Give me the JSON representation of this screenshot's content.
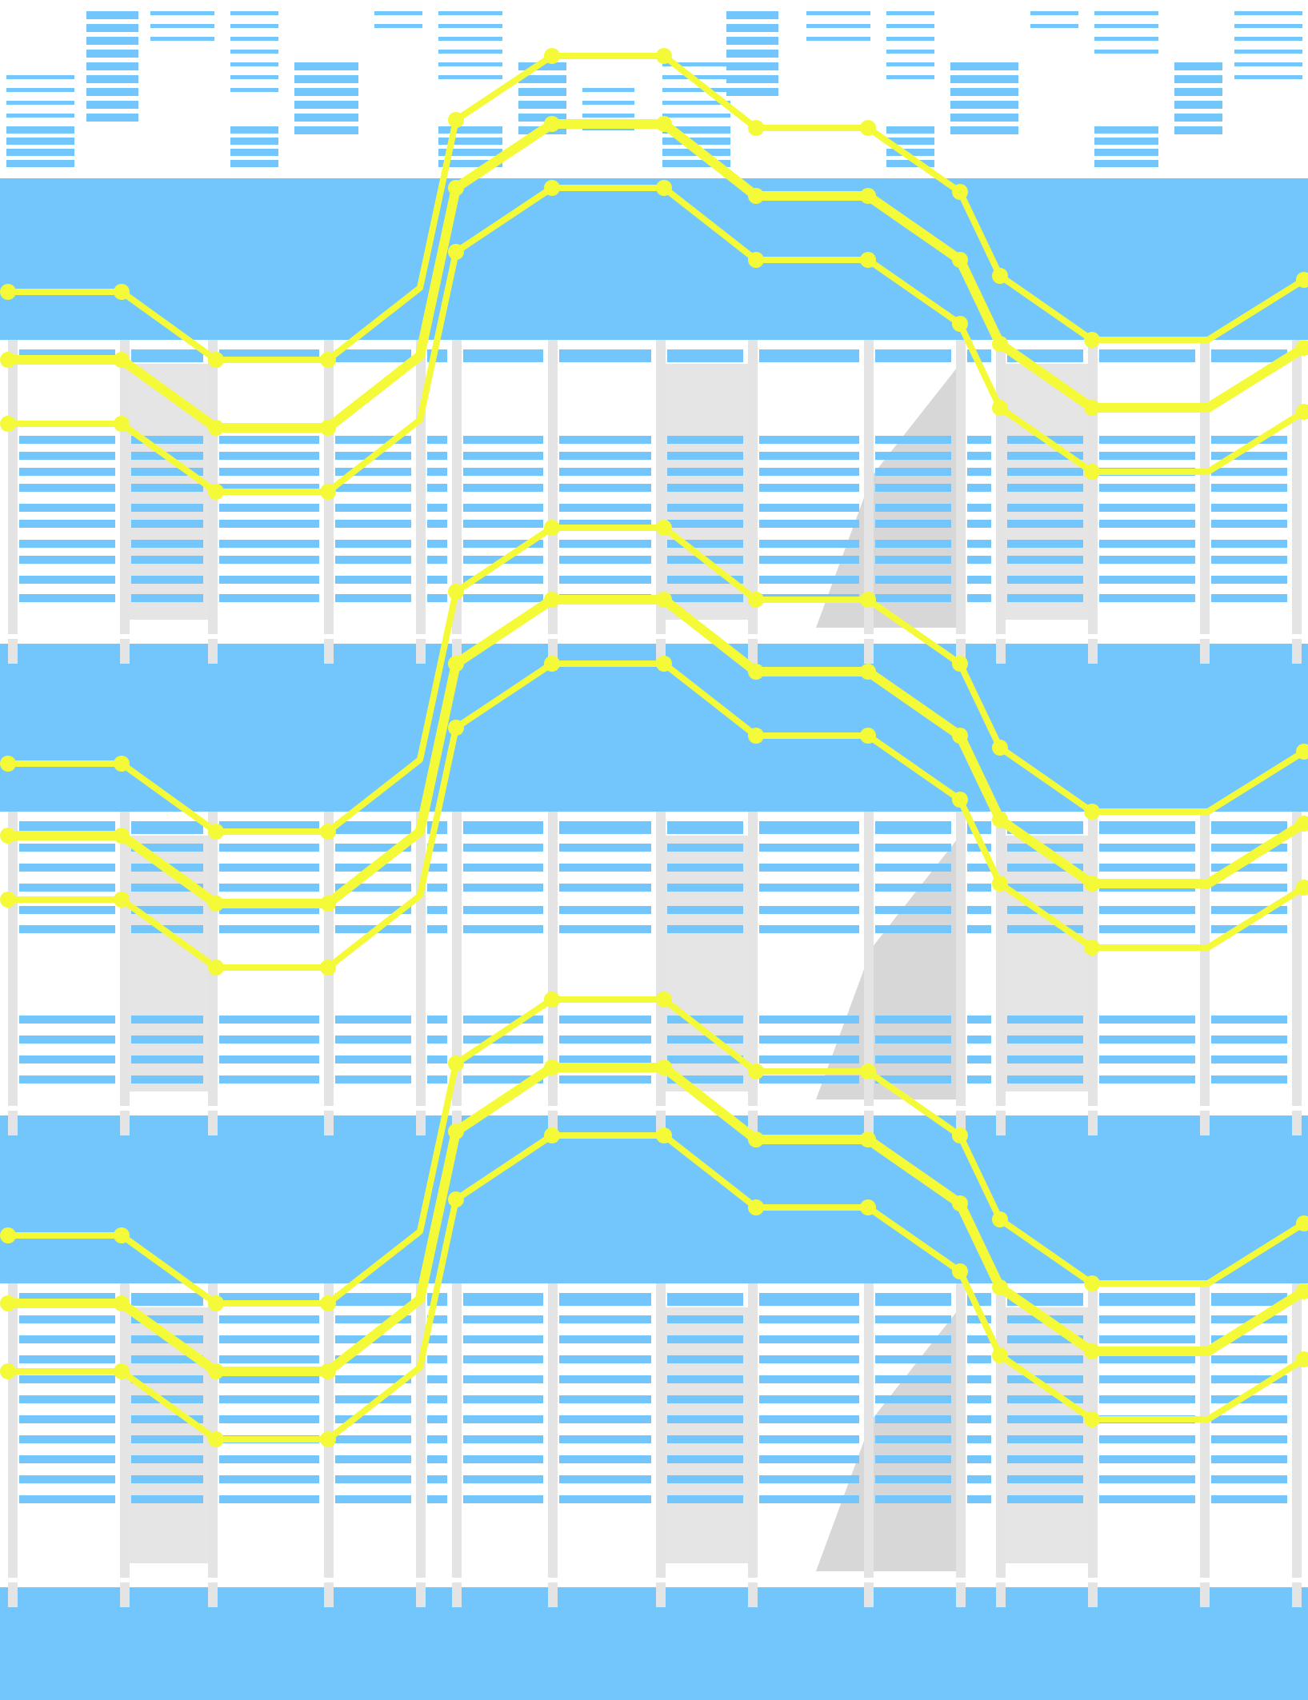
{
  "colors": {
    "sky": "#73c6fb",
    "facade": "#ffffff",
    "frame": "#e4e4e4",
    "shade": "#c9c9c9",
    "shade_light": "#dedede",
    "path": "#f5fa38"
  },
  "bands": [
    {
      "name": "band-top",
      "rows": [
        14,
        30,
        46,
        62,
        78,
        94,
        110,
        126,
        142,
        158
      ]
    },
    {
      "name": "band-1",
      "rows": [
        1
      ]
    },
    {
      "name": "band-2",
      "rows": [
        1
      ]
    },
    {
      "name": "band-3",
      "rows": [
        1
      ]
    }
  ],
  "floors": [
    {
      "name": "floor-1",
      "louver_rows": [
        8,
        10,
        12,
        14,
        16,
        18,
        20,
        22
      ]
    },
    {
      "name": "floor-2",
      "louver_rows": [
        1,
        3,
        5,
        7,
        9,
        14,
        16,
        18
      ]
    },
    {
      "name": "floor-3",
      "louver_rows": [
        1,
        3,
        5,
        7,
        9,
        11,
        13,
        15
      ]
    }
  ],
  "paths": [
    {
      "floor": 1,
      "levels": [
        2,
        3,
        3,
        2,
        0,
        0,
        1,
        1,
        2,
        3,
        4,
        4,
        3
      ]
    },
    {
      "floor": 1,
      "levels": [
        2,
        3,
        3,
        2,
        0,
        0,
        1,
        1,
        2,
        3,
        4,
        4,
        3
      ]
    },
    {
      "floor": 1,
      "levels": [
        2,
        3,
        3,
        2,
        0,
        0,
        1,
        1,
        2,
        3,
        4,
        4,
        3
      ]
    },
    {
      "floor": 2,
      "levels": [
        2,
        3,
        3,
        2,
        0,
        0,
        1,
        1,
        2,
        3,
        4,
        4,
        3
      ]
    },
    {
      "floor": 2,
      "levels": [
        2,
        3,
        3,
        2,
        0,
        0,
        1,
        1,
        2,
        3,
        4,
        4,
        3
      ]
    },
    {
      "floor": 2,
      "levels": [
        2,
        3,
        3,
        2,
        0,
        0,
        1,
        1,
        2,
        3,
        4,
        4,
        3
      ]
    },
    {
      "floor": 3,
      "levels": [
        2,
        3,
        3,
        2,
        0,
        0,
        1,
        1,
        2,
        3,
        4,
        4,
        3
      ]
    },
    {
      "floor": 3,
      "levels": [
        2,
        3,
        3,
        2,
        0,
        0,
        1,
        1,
        2,
        3,
        4,
        4,
        3
      ]
    },
    {
      "floor": 3,
      "levels": [
        2,
        3,
        3,
        2,
        0,
        0,
        1,
        1,
        2,
        3,
        4,
        4,
        3
      ]
    }
  ]
}
